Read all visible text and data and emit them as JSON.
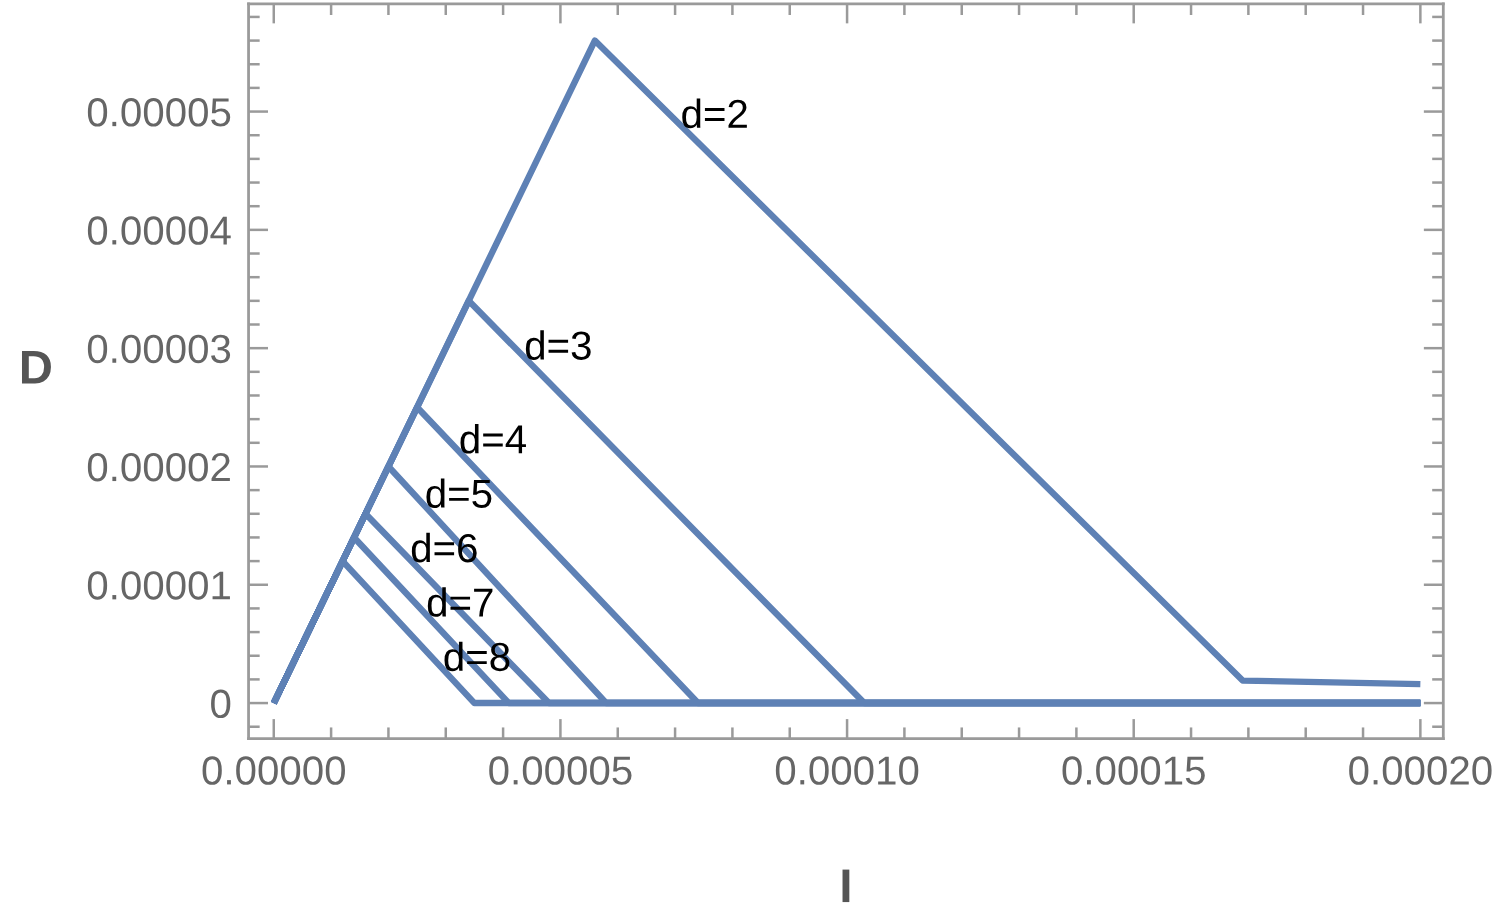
{
  "chart_data": {
    "type": "line",
    "xlabel": "I",
    "ylabel": "D",
    "series": [
      {
        "name": "d=2",
        "color": "#5e81b5",
        "x": [
          0,
          5.6e-05,
          0.000169,
          0.0002
        ],
        "values": [
          0,
          5.6e-05,
          1.9e-06,
          1.6e-06
        ]
      },
      {
        "name": "d=3",
        "color": "#5e81b5",
        "x": [
          0,
          3.4e-05,
          0.000103,
          0.0002
        ],
        "values": [
          0,
          3.4e-05,
          0,
          0
        ]
      },
      {
        "name": "d=4",
        "color": "#5e81b5",
        "x": [
          0,
          2.5e-05,
          7.4e-05,
          0.0002
        ],
        "values": [
          0,
          2.5e-05,
          0,
          0
        ]
      },
      {
        "name": "d=5",
        "color": "#5e81b5",
        "x": [
          0,
          2e-05,
          5.8e-05,
          0.0002
        ],
        "values": [
          0,
          2e-05,
          0,
          0
        ]
      },
      {
        "name": "d=6",
        "color": "#5e81b5",
        "x": [
          0,
          1.6e-05,
          4.8e-05,
          0.0002
        ],
        "values": [
          0,
          1.6e-05,
          0,
          0
        ]
      },
      {
        "name": "d=7",
        "color": "#5e81b5",
        "x": [
          0,
          1.4e-05,
          4.1e-05,
          0.0002
        ],
        "values": [
          0,
          1.4e-05,
          0,
          0
        ]
      },
      {
        "name": "d=8",
        "color": "#5e81b5",
        "x": [
          0,
          1.2e-05,
          3.5e-05,
          0.0002
        ],
        "values": [
          0,
          1.2e-05,
          0,
          0
        ]
      }
    ],
    "xlim": [
      -4.4e-06,
      0.000204
    ],
    "ylim": [
      -3e-06,
      5.91e-05
    ],
    "xticks": [
      {
        "value": 0,
        "label": "0.00000"
      },
      {
        "value": 1e-05,
        "label": null
      },
      {
        "value": 2e-05,
        "label": null
      },
      {
        "value": 3e-05,
        "label": null
      },
      {
        "value": 4e-05,
        "label": null
      },
      {
        "value": 5e-05,
        "label": "0.00005"
      },
      {
        "value": 6e-05,
        "label": null
      },
      {
        "value": 7e-05,
        "label": null
      },
      {
        "value": 8e-05,
        "label": null
      },
      {
        "value": 9e-05,
        "label": null
      },
      {
        "value": 0.0001,
        "label": "0.00010"
      },
      {
        "value": 0.00011,
        "label": null
      },
      {
        "value": 0.00012,
        "label": null
      },
      {
        "value": 0.00013,
        "label": null
      },
      {
        "value": 0.00014,
        "label": null
      },
      {
        "value": 0.00015,
        "label": "0.00015"
      },
      {
        "value": 0.00016,
        "label": null
      },
      {
        "value": 0.00017,
        "label": null
      },
      {
        "value": 0.00018,
        "label": null
      },
      {
        "value": 0.00019,
        "label": null
      },
      {
        "value": 0.0002,
        "label": "0.00020"
      }
    ],
    "yticks": [
      {
        "value": -2e-06,
        "label": null
      },
      0,
      {
        "value": 2e-06,
        "label": null
      },
      {
        "value": 4e-06,
        "label": null
      },
      {
        "value": 6e-06,
        "label": null
      },
      {
        "value": 8e-06,
        "label": null
      },
      {
        "value": 1e-05,
        "label": "0.00001"
      },
      {
        "value": 1.2e-05,
        "label": null
      },
      {
        "value": 1.4e-05,
        "label": null
      },
      {
        "value": 1.6e-05,
        "label": null
      },
      {
        "value": 1.8e-05,
        "label": null
      },
      {
        "value": 2e-05,
        "label": "0.00002"
      },
      {
        "value": 2.2e-05,
        "label": null
      },
      {
        "value": 2.4e-05,
        "label": null
      },
      {
        "value": 2.6e-05,
        "label": null
      },
      {
        "value": 2.8e-05,
        "label": null
      },
      {
        "value": 3e-05,
        "label": "0.00003"
      },
      {
        "value": 3.2e-05,
        "label": null
      },
      {
        "value": 3.4e-05,
        "label": null
      },
      {
        "value": 3.6e-05,
        "label": null
      },
      {
        "value": 3.8e-05,
        "label": null
      },
      {
        "value": 4e-05,
        "label": "0.00004"
      },
      {
        "value": 4.2e-05,
        "label": null
      },
      {
        "value": 4.4e-05,
        "label": null
      },
      {
        "value": 4.6e-05,
        "label": null
      },
      {
        "value": 4.8e-05,
        "label": null
      },
      {
        "value": 5e-05,
        "label": "0.00005"
      },
      {
        "value": 5.2e-05,
        "label": null
      },
      {
        "value": 5.4e-05,
        "label": null
      },
      {
        "value": 5.6e-05,
        "label": null
      },
      {
        "value": 5.8e-05,
        "label": null
      }
    ]
  }
}
